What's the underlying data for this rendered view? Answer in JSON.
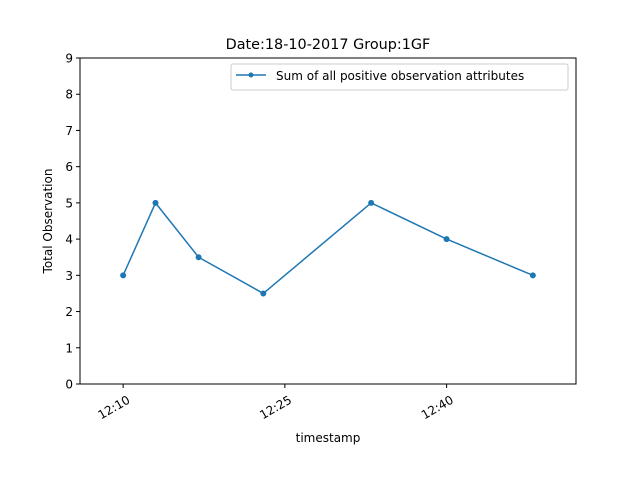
{
  "chart_data": {
    "type": "line",
    "title": "Date:18-10-2017  Group:1GF",
    "xlabel": "timestamp",
    "ylabel": "Total Observation",
    "x_ticks": [
      "12:10",
      "12:25",
      "12:40"
    ],
    "y_ticks": [
      0,
      1,
      2,
      3,
      4,
      5,
      6,
      7,
      8,
      9
    ],
    "xlim": [
      "12:06",
      "12:52"
    ],
    "ylim": [
      0,
      9
    ],
    "grid": false,
    "legend_position": "top-right",
    "series": [
      {
        "name": "Sum of all positive observation attributes",
        "color": "#1f77b4",
        "marker": "point",
        "points": [
          {
            "x": "12:10",
            "y": 3
          },
          {
            "x": "12:13",
            "y": 5
          },
          {
            "x": "12:17",
            "y": 3.5
          },
          {
            "x": "12:23",
            "y": 2.5
          },
          {
            "x": "12:33",
            "y": 5
          },
          {
            "x": "12:40",
            "y": 4
          },
          {
            "x": "12:48",
            "y": 3
          }
        ]
      }
    ]
  }
}
